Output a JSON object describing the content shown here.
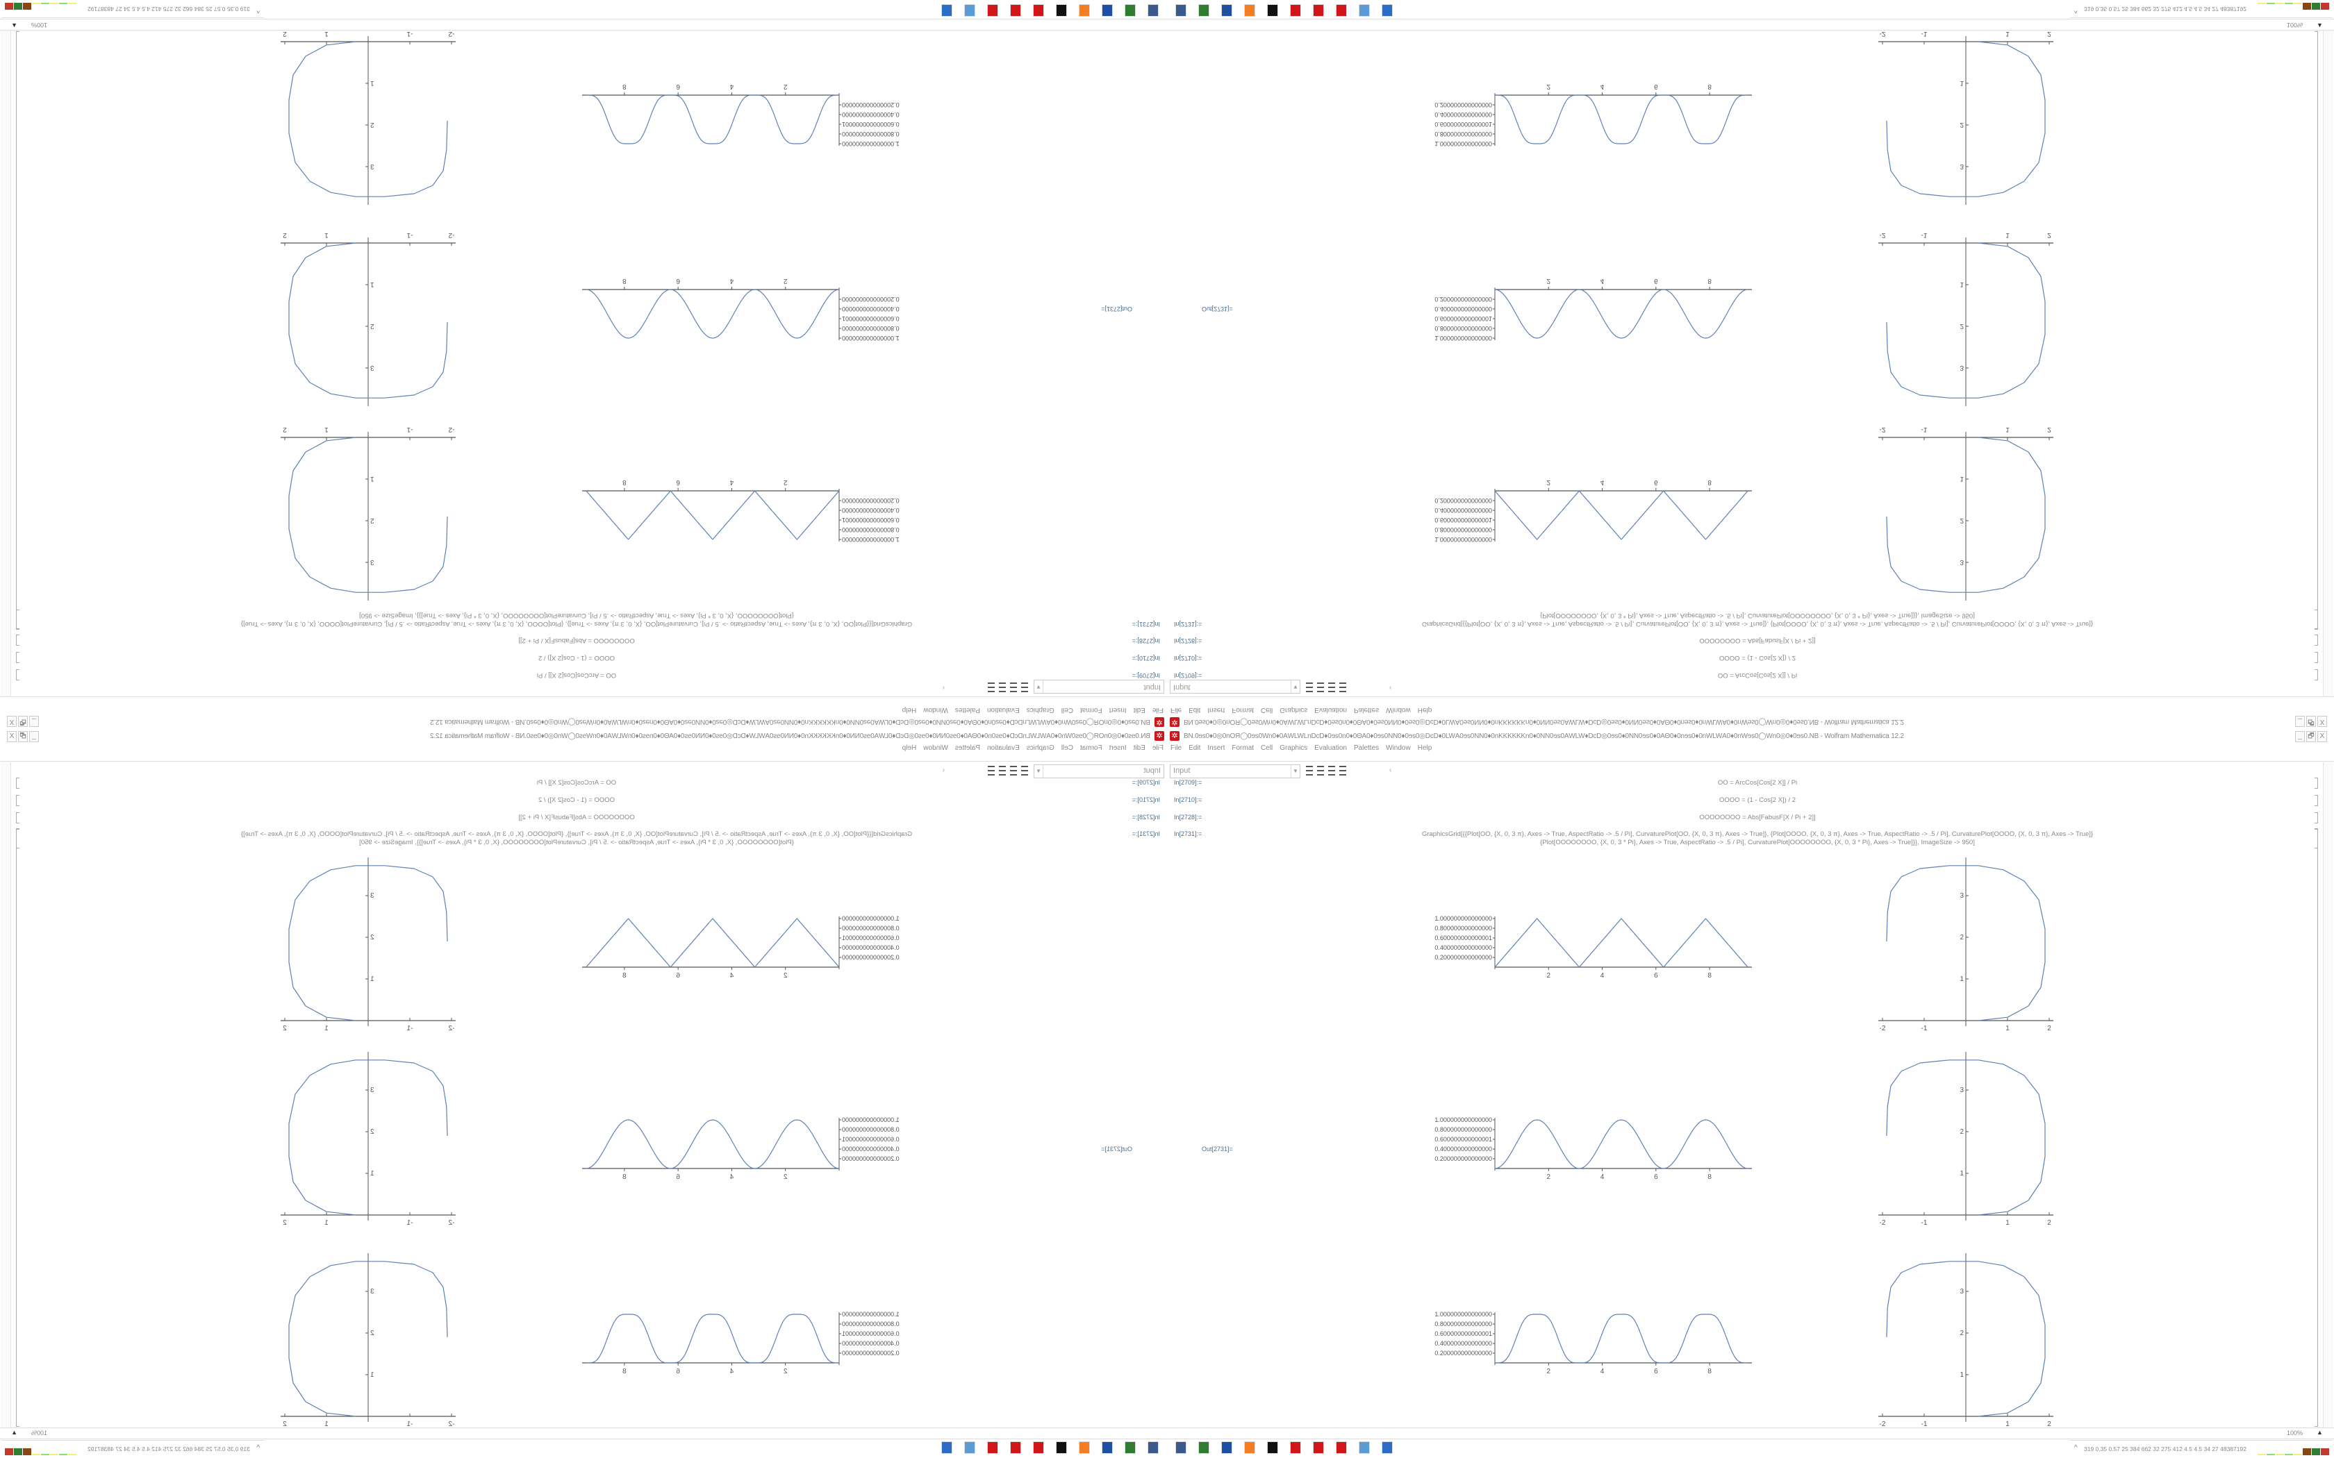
{
  "window": {
    "title": "BN.0ɘs0♦0◎0nOЯ◯0ɘs0Wn0♦0ΑWLWLnDcD♦0ɘs0n0♦0ΘΑ0♦0ɘs0NN0♦0ɘs0◎DcD♦0LWΑ0ɘs0NN0♦0nKKKKKKn0♦0NN0ɘs0ΑWLW♦DcD◎0ɘs0♦0NN0ɘs0♦0ΑΘ0♦0nɘs0♦0nWLWΑ0♦0nWɘs0◯Wn0◎0♦0ɘs0.NB - Wolfram Mathematica 12.2",
    "minimize": "_",
    "restore": "🗗",
    "close": "X"
  },
  "menu": [
    "File",
    "Edit",
    "Insert",
    "Format",
    "Cell",
    "Graphics",
    "Evaluation",
    "Palettes",
    "Window",
    "Help"
  ],
  "toolbar": {
    "style_value": "Input"
  },
  "cells": [
    {
      "label": "In[2709]:=",
      "code": [
        "OO = ArcCos[Cos[2 X]] / Pi"
      ]
    },
    {
      "label": "In[2710]:=",
      "code": [
        "OOOO = (1 - Cos[2 X]) / 2"
      ]
    },
    {
      "label": "In[2728]:=",
      "code": [
        "OOOOOOOO = Abs[FabusF[X / Pi + 2]]"
      ]
    },
    {
      "label": "In[2731]:=",
      "code": [
        "GraphicsGrid[{{Plot[OO, {X, 0, 3 π}, Axes -> True, AspectRatio -> .5 / Pi], CurvaturePlot[OO, {X, 0, 3 π}, Axes -> True]}, {Plot[OOOO, {X, 0, 3 π}, Axes -> True, AspectRatio -> .5 / Pi], CurvaturePlot[OOOO, {X, 0, 3 π}, Axes -> True]}",
        "{Plot[OOOOOOOO, {X, 0, 3 * Pi}, Axes -> True, AspectRatio -> .5 / Pi], CurvaturePlot[OOOOOOOO, {X, 0, 3 * Pi}, Axes -> True]}}, ImageSize -> 950]"
      ]
    }
  ],
  "output": {
    "label": "Out[2731]=",
    "line_color": "#5e81b5",
    "plots": [
      {
        "function": "triangle",
        "xticks": [
          "2",
          "4",
          "6",
          "8"
        ],
        "yticks": [
          "1.000000000000000",
          "0.800000000000000",
          "0.600000000000001",
          "0.400000000000000",
          "0.200000000000000"
        ],
        "xrange": [
          0,
          9.42
        ],
        "yrange": [
          0,
          1
        ]
      },
      {
        "function": "sin-squared",
        "xticks": [
          "2",
          "4",
          "6",
          "8"
        ],
        "yticks": [
          "1.000000000000000",
          "0.800000000000000",
          "0.600000000000001",
          "0.400000000000000",
          "0.200000000000000"
        ],
        "xrange": [
          0,
          9.42
        ],
        "yrange": [
          0,
          1
        ]
      },
      {
        "function": "flat-top",
        "xticks": [
          "2",
          "4",
          "6",
          "8"
        ],
        "yticks": [
          "1.000000000000000",
          "0.800000000000000",
          "0.600000000000001",
          "0.400000000000000",
          "0.200000000000000"
        ],
        "xrange": [
          0,
          9.42
        ],
        "yrange": [
          0,
          1
        ]
      }
    ],
    "curvature_plots": [
      {
        "xticks": [
          "-2",
          "-1",
          "1",
          "2"
        ],
        "yticks": [
          "1",
          "2",
          "3"
        ]
      },
      {
        "xticks": [
          "-2",
          "-1",
          "1",
          "2"
        ],
        "yticks": [
          "1",
          "2",
          "3"
        ]
      },
      {
        "xticks": [
          "-2",
          "-1",
          "1",
          "2"
        ],
        "yticks": [
          "1",
          "2",
          "3"
        ]
      }
    ]
  },
  "status": {
    "zoom": "100%"
  },
  "taskbar": {
    "icons": [
      {
        "name": "network-monitor-icon",
        "color": "#3a5a8c"
      },
      {
        "name": "android-emulator-icon",
        "color": "#2f7d32"
      },
      {
        "name": "save-disk-icon",
        "color": "#1f4fa3"
      },
      {
        "name": "firefox-icon",
        "color": "#f57c20"
      },
      {
        "name": "inkscape-icon",
        "color": "#111111"
      },
      {
        "name": "mathematica-icon",
        "color": "#d0161b"
      },
      {
        "name": "mathematica-icon",
        "color": "#d0161b"
      },
      {
        "name": "mathematica-icon",
        "color": "#d0161b"
      },
      {
        "name": "calculator-icon",
        "color": "#5b9bd5"
      },
      {
        "name": "window-icon",
        "color": "#2b6cc4"
      }
    ],
    "tray_text": "319 0.35 0.57 25 384 662 32 275 412 4.5 4.5 34 27 48387192",
    "meters": [
      "#f5f07a",
      "#88e07a",
      "#f5f07a",
      "#88e07a",
      "#f5f07a",
      "#8b4513",
      "#2f7d32",
      "#c0392b"
    ]
  }
}
